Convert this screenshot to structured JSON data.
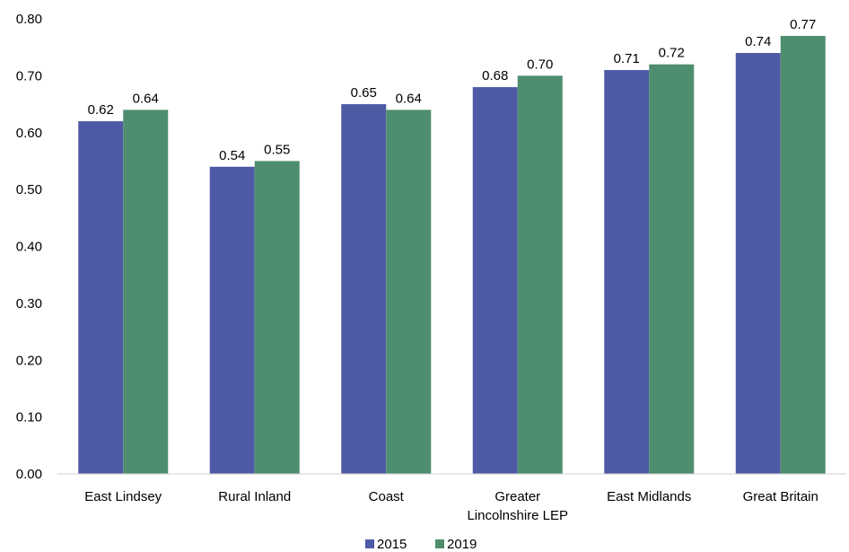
{
  "chart_data": {
    "type": "bar",
    "title": "",
    "xlabel": "",
    "ylabel": "",
    "categories": [
      [
        "East Lindsey"
      ],
      [
        "Rural Inland"
      ],
      [
        "Coast"
      ],
      [
        "Greater",
        "Lincolnshire LEP"
      ],
      [
        "East Midlands"
      ],
      [
        "Great Britain"
      ]
    ],
    "series": [
      {
        "name": "2015",
        "color": "#4F5AA6",
        "values": [
          0.62,
          0.54,
          0.65,
          0.68,
          0.71,
          0.74
        ],
        "labels": [
          "0.62",
          "0.54",
          "0.65",
          "0.68",
          "0.71",
          "0.74"
        ]
      },
      {
        "name": "2019",
        "color": "#4E8E6E",
        "values": [
          0.64,
          0.55,
          0.64,
          0.7,
          0.72,
          0.77
        ],
        "labels": [
          "0.64",
          "0.55",
          "0.64",
          "0.70",
          "0.72",
          "0.77"
        ]
      }
    ],
    "ylim": [
      0,
      0.8
    ],
    "yticks": [
      "0.00",
      "0.10",
      "0.20",
      "0.30",
      "0.40",
      "0.50",
      "0.60",
      "0.70",
      "0.80"
    ],
    "grid": false,
    "legend_position": "bottom"
  }
}
